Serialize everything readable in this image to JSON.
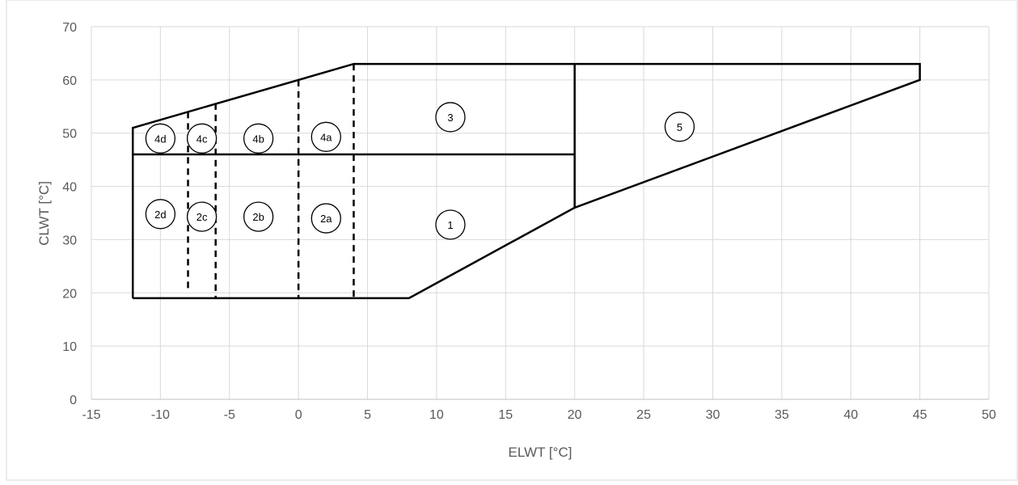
{
  "chart_data": {
    "type": "line",
    "xlabel": "ELWT [°C]",
    "ylabel": "CLWT [°C]",
    "xlim": [
      -15,
      50
    ],
    "ylim": [
      0,
      70
    ],
    "x_ticks": [
      -15,
      -10,
      -5,
      0,
      5,
      10,
      15,
      20,
      25,
      30,
      35,
      40,
      45,
      50
    ],
    "y_ticks": [
      0,
      10,
      20,
      30,
      40,
      50,
      60,
      70
    ],
    "x_tick_labels": [
      "-15",
      "-10",
      "-5",
      "0",
      "5",
      "10",
      "15",
      "20",
      "25",
      "30",
      "35",
      "40",
      "45",
      "50"
    ],
    "y_tick_labels": [
      "0",
      "10",
      "20",
      "30",
      "40",
      "50",
      "60",
      "70"
    ],
    "grid": true,
    "colors": {
      "grid": "#d9d9d9",
      "line": "#000000",
      "text": "#595959"
    },
    "envelope": [
      [
        -12,
        19
      ],
      [
        8,
        19
      ],
      [
        20,
        36
      ],
      [
        45,
        60
      ],
      [
        45,
        63
      ],
      [
        4,
        63
      ],
      [
        -12,
        51
      ],
      [
        -12,
        19
      ]
    ],
    "solid_segments": [
      [
        [
          -12,
          46
        ],
        [
          20,
          46
        ]
      ],
      [
        [
          20,
          63
        ],
        [
          20,
          36
        ]
      ]
    ],
    "dashed_segments": [
      [
        [
          -8,
          54
        ],
        [
          -8,
          20
        ]
      ],
      [
        [
          -6,
          55.6
        ],
        [
          -6,
          19
        ]
      ],
      [
        [
          0,
          60
        ],
        [
          0,
          19
        ]
      ],
      [
        [
          4,
          63
        ],
        [
          4,
          19
        ]
      ]
    ],
    "region_labels": [
      {
        "text": "4d",
        "x": -10,
        "y": 49
      },
      {
        "text": "4c",
        "x": -7,
        "y": 49
      },
      {
        "text": "4b",
        "x": -2.9,
        "y": 49
      },
      {
        "text": "4a",
        "x": 2,
        "y": 49.3
      },
      {
        "text": "3",
        "x": 11,
        "y": 53
      },
      {
        "text": "5",
        "x": 27.6,
        "y": 51.2
      },
      {
        "text": "2d",
        "x": -10,
        "y": 34.8
      },
      {
        "text": "2c",
        "x": -7,
        "y": 34.3
      },
      {
        "text": "2b",
        "x": -2.9,
        "y": 34.3
      },
      {
        "text": "2a",
        "x": 2,
        "y": 34
      },
      {
        "text": "1",
        "x": 11,
        "y": 32.8
      }
    ]
  }
}
